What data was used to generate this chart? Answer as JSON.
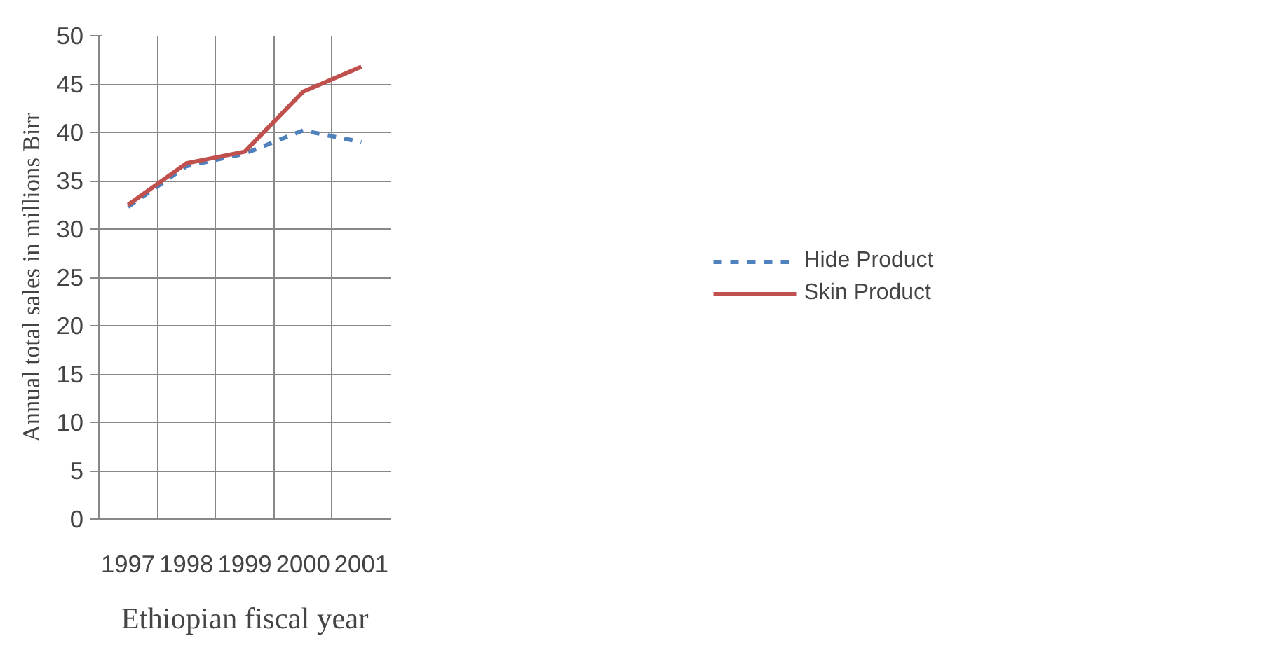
{
  "chart_data": {
    "type": "line",
    "xlabel": "Ethiopian fiscal year",
    "ylabel": "Annual total sales in millions Birr",
    "categories": [
      "1997",
      "1998",
      "1999",
      "2000",
      "2001"
    ],
    "series": [
      {
        "name": "Hide Product",
        "color": "#4f81bd",
        "line_style": "dashed",
        "values": [
          32.3,
          36.5,
          37.8,
          40.2,
          39.0
        ]
      },
      {
        "name": "Skin Product",
        "color": "#c0504d",
        "line_style": "solid",
        "values": [
          32.5,
          36.8,
          38.0,
          44.2,
          46.8
        ]
      }
    ],
    "ylim": [
      0,
      50
    ],
    "yticks": [
      0,
      5,
      10,
      15,
      20,
      25,
      30,
      35,
      40,
      45,
      50
    ],
    "grid": true,
    "legend": "right"
  }
}
